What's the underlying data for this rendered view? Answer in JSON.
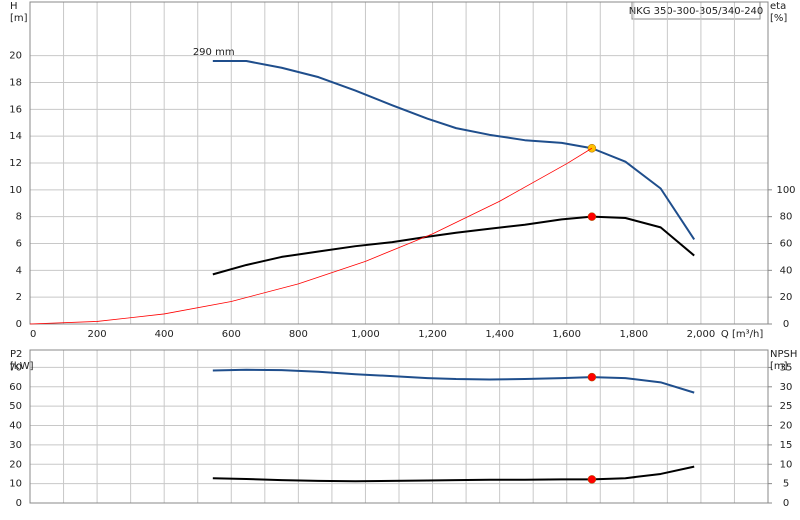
{
  "chart_data": [
    {
      "type": "line",
      "title": "NKG 350-300-305/340-240",
      "y_label": "H",
      "y_unit": "[m]",
      "y2_label": "eta",
      "y2_unit": "[%]",
      "x_label": "Q [m³/h]",
      "curve_label": "290 mm",
      "xlim": [
        0,
        2200
      ],
      "xticks": [
        0,
        200,
        400,
        600,
        800,
        {
          "value": 1000,
          "label": "1,000"
        },
        {
          "value": 1200,
          "label": "1,200"
        },
        {
          "value": 1400,
          "label": "1,400"
        },
        {
          "value": 1600,
          "label": "1,600"
        },
        {
          "value": 1800,
          "label": "1,800"
        },
        {
          "value": 2000,
          "label": "2,000"
        }
      ],
      "ylim": [
        0,
        24
      ],
      "yticks": [
        0,
        2,
        4,
        6,
        8,
        10,
        12,
        14,
        16,
        18,
        20
      ],
      "y2lim": [
        0,
        240
      ],
      "y2ticks": [
        0,
        20,
        40,
        60,
        80,
        100
      ],
      "grid": true,
      "series": [
        {
          "color": "#1f4e8c",
          "width": 2,
          "x": [
            545,
            645,
            750,
            860,
            970,
            1080,
            1185,
            1270,
            1370,
            1475,
            1585,
            1675,
            1775,
            1880,
            1980
          ],
          "values": [
            19.6,
            19.6,
            19.1,
            18.4,
            17.4,
            16.3,
            15.3,
            14.6,
            14.1,
            13.7,
            13.5,
            13.1,
            12.1,
            10.1,
            6.3
          ],
          "duty_index": 11,
          "duty_color": "#ffc000"
        },
        {
          "color": "#000000",
          "width": 2,
          "axis": "y2",
          "x": [
            545,
            645,
            750,
            860,
            970,
            1080,
            1185,
            1270,
            1370,
            1475,
            1585,
            1675,
            1775,
            1880,
            1980
          ],
          "values": [
            37,
            44,
            50,
            54,
            58,
            61,
            65,
            68,
            71,
            74,
            78,
            80,
            79,
            72,
            51
          ],
          "duty_index": 11,
          "duty_color": "#ff0000"
        },
        {
          "color": "#ff0000",
          "width": 0.8,
          "x": [
            0,
            200,
            400,
            600,
            800,
            1000,
            1200,
            1400,
            1600,
            1675
          ],
          "values": [
            0,
            0.19,
            0.75,
            1.68,
            2.99,
            4.67,
            6.72,
            9.15,
            11.95,
            13.1
          ]
        }
      ]
    },
    {
      "type": "line",
      "y_label": "P2",
      "y_unit": "[kW]",
      "y2_label": "NPSH",
      "y2_unit": "[m]",
      "xlim": [
        0,
        2200
      ],
      "ylim": [
        0,
        79
      ],
      "yticks": [
        0,
        10,
        20,
        30,
        40,
        50,
        60,
        70
      ],
      "y2lim": [
        0,
        39.5
      ],
      "y2ticks": [
        0,
        5,
        10,
        15,
        20,
        25,
        30,
        35
      ],
      "grid": true,
      "series": [
        {
          "color": "#1f4e8c",
          "width": 2,
          "x": [
            545,
            645,
            750,
            860,
            970,
            1080,
            1185,
            1270,
            1370,
            1475,
            1585,
            1675,
            1775,
            1880,
            1980
          ],
          "values": [
            68.4,
            68.8,
            68.6,
            67.8,
            66.5,
            65.5,
            64.5,
            64.0,
            63.8,
            64.0,
            64.5,
            65.0,
            64.5,
            62.3,
            57.0
          ],
          "duty_index": 11,
          "duty_color": "#ff0000"
        },
        {
          "color": "#000000",
          "width": 2,
          "axis": "y2",
          "x": [
            545,
            645,
            750,
            860,
            970,
            1080,
            1185,
            1270,
            1370,
            1475,
            1585,
            1675,
            1775,
            1880,
            1980
          ],
          "values": [
            6.4,
            6.2,
            5.9,
            5.7,
            5.6,
            5.7,
            5.8,
            5.9,
            6.0,
            6.0,
            6.1,
            6.1,
            6.4,
            7.5,
            9.4
          ],
          "duty_index": 11,
          "duty_color": "#ff0000"
        }
      ]
    }
  ]
}
